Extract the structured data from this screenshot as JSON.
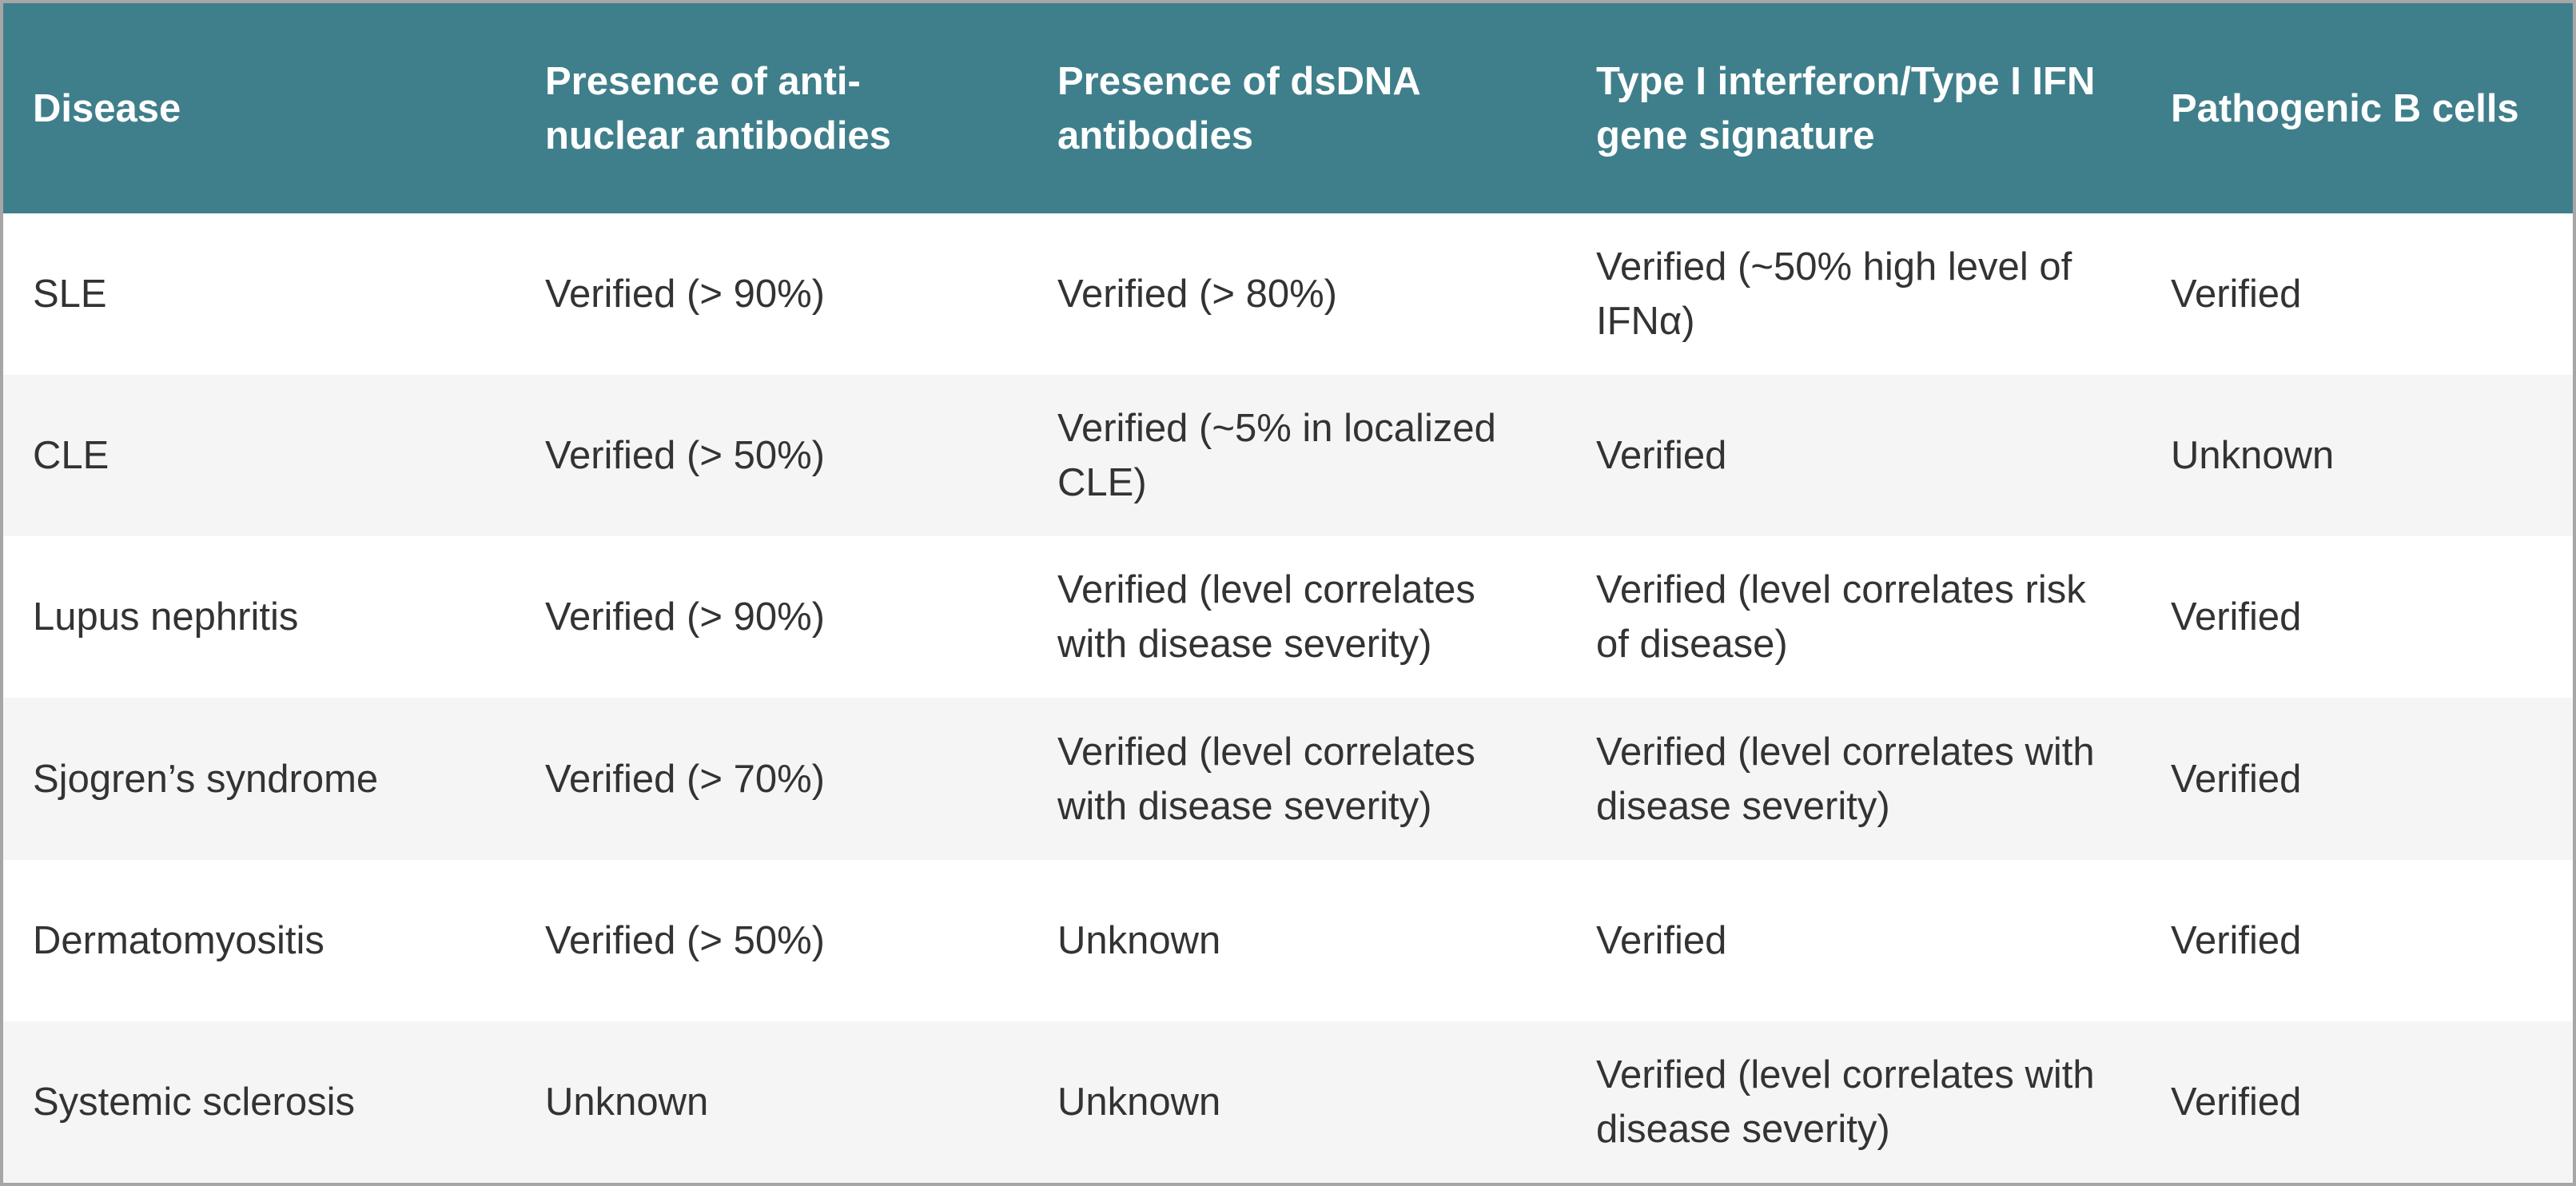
{
  "table": {
    "columns": [
      "Disease",
      "Presence of anti-nuclear antibodies",
      "Presence of dsDNA antibodies",
      "Type I interferon/Type I IFN gene signature",
      "Pathogenic B cells"
    ],
    "rows": [
      [
        "SLE",
        "Verified (> 90%)",
        "Verified (> 80%)",
        "Verified (~50% high level of IFNα)",
        "Verified"
      ],
      [
        "CLE",
        "Verified (> 50%)",
        "Verified (~5% in localized CLE)",
        "Verified",
        "Unknown"
      ],
      [
        "Lupus nephritis",
        "Verified (> 90%)",
        "Verified (level correlates with disease severity)",
        "Verified (level correlates risk of disease)",
        "Verified"
      ],
      [
        "Sjogren’s syndrome",
        "Verified (> 70%)",
        "Verified (level correlates with disease severity)",
        "Verified (level correlates with disease severity)",
        "Verified"
      ],
      [
        "Dermatomyositis",
        "Verified (> 50%)",
        "Unknown",
        "Verified",
        "Verified"
      ],
      [
        "Systemic sclerosis",
        "Unknown",
        "Unknown",
        "Verified (level correlates with disease severity)",
        "Verified"
      ]
    ]
  }
}
